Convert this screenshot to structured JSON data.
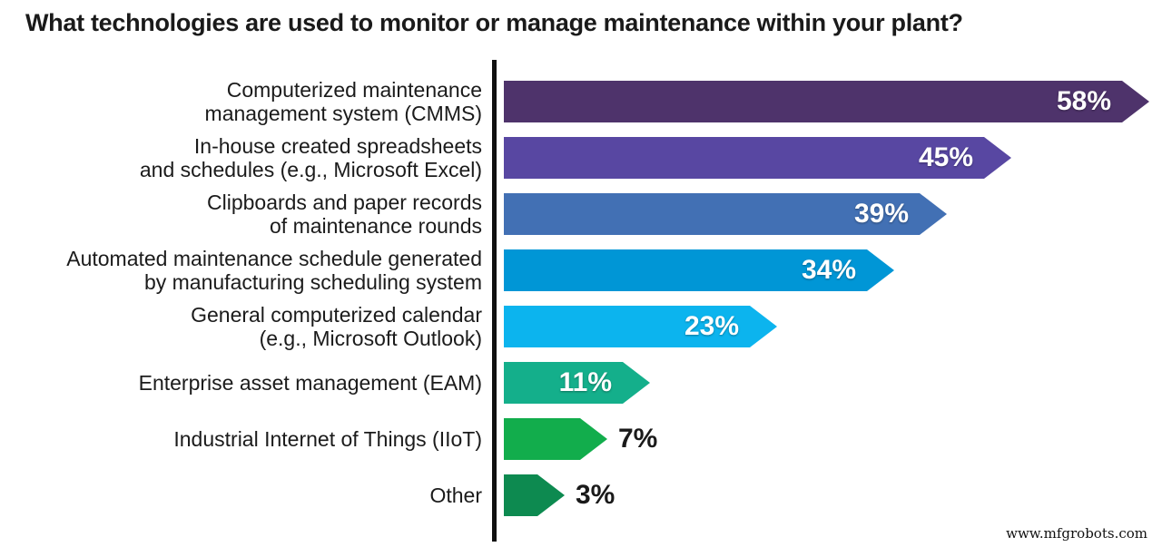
{
  "title": "What technologies are used to monitor or manage maintenance within your plant?",
  "watermark": "www.mfgrobots.com",
  "chart_data": {
    "type": "bar",
    "orientation": "horizontal",
    "title": "What technologies are used to monitor or manage maintenance within your plant?",
    "xlabel": "",
    "ylabel": "",
    "xlim": [
      0,
      60
    ],
    "grid": false,
    "legend": false,
    "categories": [
      "Computerized maintenance management system (CMMS)",
      "In-house created spreadsheets and schedules (e.g., Microsoft Excel)",
      "Clipboards and paper records of maintenance rounds",
      "Automated maintenance schedule generated by manufacturing scheduling system",
      "General computerized calendar (e.g., Microsoft Outlook)",
      "Enterprise asset management (EAM)",
      "Industrial Internet of Things (IIoT)",
      "Other"
    ],
    "label_lines": [
      [
        "Computerized maintenance",
        "management system (CMMS)"
      ],
      [
        "In-house created spreadsheets",
        "and schedules (e.g., Microsoft Excel)"
      ],
      [
        "Clipboards and paper records",
        "of maintenance rounds"
      ],
      [
        "Automated maintenance schedule generated",
        "by manufacturing scheduling system"
      ],
      [
        "General computerized calendar",
        "(e.g., Microsoft Outlook)"
      ],
      [
        "Enterprise asset management (EAM)"
      ],
      [
        "Industrial Internet of Things (IIoT)"
      ],
      [
        "Other"
      ]
    ],
    "values": [
      58,
      45,
      39,
      34,
      23,
      11,
      7,
      3
    ],
    "value_labels": [
      "58%",
      "45%",
      "39%",
      "34%",
      "23%",
      "11%",
      "7%",
      "3%"
    ],
    "value_label_inside": [
      true,
      true,
      true,
      true,
      true,
      true,
      false,
      false
    ],
    "bar_colors": [
      "#4e336b",
      "#5847a2",
      "#4270b4",
      "#0096d6",
      "#0cb4ee",
      "#14af8b",
      "#12ad4c",
      "#0d8a50"
    ],
    "bar_shape": "right-arrow",
    "axis_color": "#111111"
  }
}
